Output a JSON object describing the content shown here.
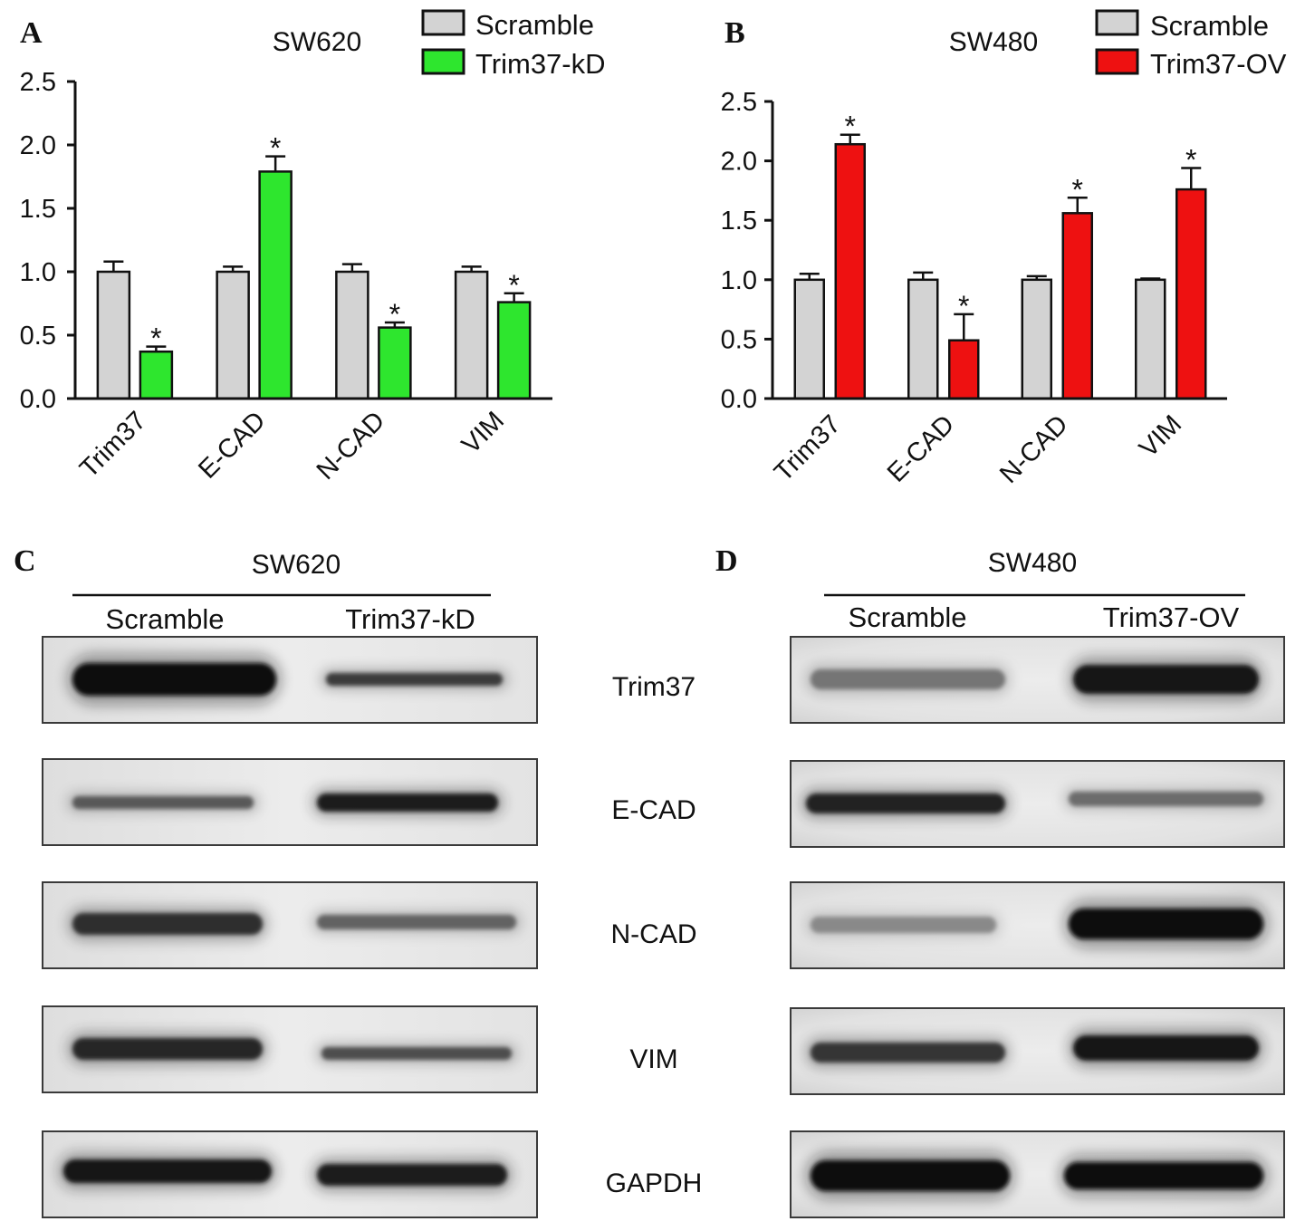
{
  "chart_data": [
    {
      "panel_label": "A",
      "type": "bar",
      "title": "SW620",
      "categories": [
        "Trim37",
        "E-CAD",
        "N-CAD",
        "VIM"
      ],
      "series": [
        {
          "name": "Scramble",
          "values": [
            1.0,
            1.0,
            1.0,
            1.0
          ],
          "errors": [
            0.08,
            0.04,
            0.06,
            0.04
          ],
          "annotations": [
            "",
            "",
            "",
            ""
          ],
          "color": "#d3d3d3"
        },
        {
          "name": "Trim37-kD",
          "values": [
            0.37,
            1.79,
            0.56,
            0.76
          ],
          "errors": [
            0.04,
            0.12,
            0.04,
            0.07
          ],
          "annotations": [
            "*",
            "*",
            "*",
            "*"
          ],
          "color": "#2ee62e"
        }
      ],
      "xlabel": "",
      "ylabel": "",
      "ylim": [
        0,
        2.5
      ],
      "yticks": [
        "0.0",
        "0.5",
        "1.0",
        "1.5",
        "2.0",
        "2.5"
      ],
      "grid": false,
      "legend": "top-right"
    },
    {
      "panel_label": "B",
      "type": "bar",
      "title": "SW480",
      "categories": [
        "Trim37",
        "E-CAD",
        "N-CAD",
        "VIM"
      ],
      "series": [
        {
          "name": "Scramble",
          "values": [
            1.0,
            1.0,
            1.0,
            1.0
          ],
          "errors": [
            0.05,
            0.06,
            0.03,
            0.01
          ],
          "annotations": [
            "",
            "",
            "",
            ""
          ],
          "color": "#d3d3d3"
        },
        {
          "name": "Trim37-OV",
          "values": [
            2.14,
            0.49,
            1.56,
            1.76
          ],
          "errors": [
            0.08,
            0.22,
            0.13,
            0.18
          ],
          "annotations": [
            "*",
            "*",
            "*",
            "*"
          ],
          "color": "#ee1111"
        }
      ],
      "xlabel": "",
      "ylabel": "",
      "ylim": [
        0,
        2.5
      ],
      "yticks": [
        "0.0",
        "0.5",
        "1.0",
        "1.5",
        "2.0",
        "2.5"
      ],
      "grid": false,
      "legend": "top-right"
    }
  ],
  "blot_panels": [
    {
      "panel_label": "C",
      "cell_line": "SW620",
      "lanes": [
        "Scramble",
        "Trim37-kD"
      ]
    },
    {
      "panel_label": "D",
      "cell_line": "SW480",
      "lanes": [
        "Scramble",
        "Trim37-OV"
      ]
    }
  ],
  "blot_rows": [
    {
      "protein": "Trim37",
      "band_intensity": [
        [
          1.0,
          0.75
        ],
        [
          0.45,
          0.95
        ]
      ]
    },
    {
      "protein": "E-CAD",
      "band_intensity": [
        [
          0.6,
          0.9
        ],
        [
          0.88,
          0.5
        ]
      ]
    },
    {
      "protein": "N-CAD",
      "band_intensity": [
        [
          0.82,
          0.55
        ],
        [
          0.35,
          1.0
        ]
      ]
    },
    {
      "protein": "VIM",
      "band_intensity": [
        [
          0.85,
          0.65
        ],
        [
          0.78,
          0.95
        ]
      ]
    },
    {
      "protein": "GAPDH",
      "band_intensity": [
        [
          0.95,
          0.92
        ],
        [
          1.0,
          1.0
        ]
      ]
    }
  ]
}
